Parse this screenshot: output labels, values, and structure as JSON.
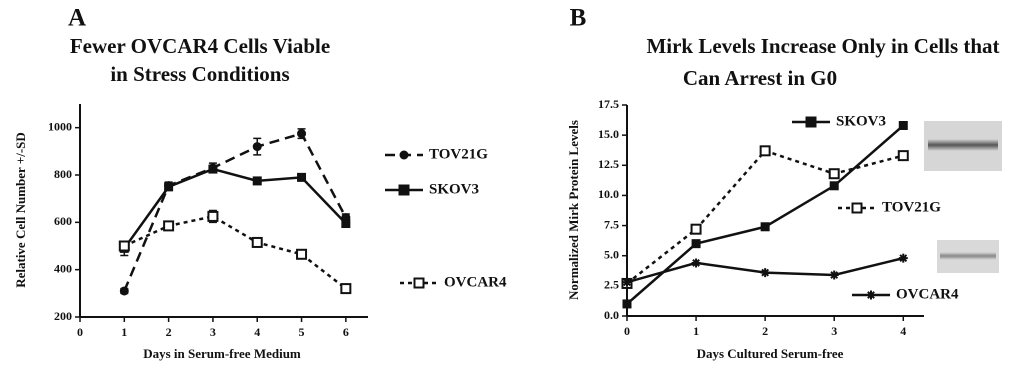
{
  "chart_data": [
    {
      "type": "line",
      "panel": "A",
      "title": [
        "Fewer OVCAR4 Cells Viable",
        "in Stress Conditions"
      ],
      "x_label": "Days in Serum-free Medium",
      "y_label": "Relative Cell Number +/-SD",
      "xlim": [
        0,
        6.5
      ],
      "xticks": [
        0,
        1,
        2,
        3,
        4,
        5,
        6
      ],
      "ylim": [
        200,
        1100
      ],
      "yticks": [
        200,
        400,
        600,
        800,
        1000
      ],
      "series": [
        {
          "name": "TOV21G",
          "color": "#111111",
          "marker": "circle",
          "line_style": "dashed",
          "x": [
            1,
            2,
            3,
            4,
            5,
            6
          ],
          "values": [
            310,
            755,
            830,
            920,
            975,
            620
          ],
          "errors": [
            10,
            15,
            20,
            35,
            20,
            15
          ]
        },
        {
          "name": "SKOV3",
          "color": "#111111",
          "marker": "square",
          "line_style": "solid",
          "x": [
            1,
            2,
            3,
            4,
            5,
            6
          ],
          "values": [
            490,
            750,
            825,
            775,
            790,
            595
          ],
          "errors": [
            30,
            15,
            15,
            10,
            10,
            15
          ]
        },
        {
          "name": "OVCAR4",
          "color": "#111111",
          "marker": "open-square",
          "line_style": "dotted",
          "x": [
            1,
            2,
            3,
            4,
            5,
            6
          ],
          "values": [
            500,
            585,
            625,
            515,
            465,
            320
          ],
          "errors": [
            10,
            15,
            25,
            15,
            15,
            10
          ]
        }
      ]
    },
    {
      "type": "line",
      "panel": "B",
      "title": [
        "Mirk Levels Increase Only in Cells that",
        "Can Arrest in G0"
      ],
      "x_label": "Days Cultured Serum-free",
      "y_label": "Normalized Mirk Protein Levels",
      "xlim": [
        0,
        4.3
      ],
      "xticks": [
        0,
        1,
        2,
        3,
        4
      ],
      "ylim": [
        0,
        17.5
      ],
      "yticks": [
        {
          "value": 0,
          "label": "0.0"
        },
        2.5,
        {
          "value": 5,
          "label": "5.0"
        },
        7.5,
        {
          "value": 10,
          "label": "10.0"
        },
        12.5,
        {
          "value": 15,
          "label": "15.0"
        },
        17.5
      ],
      "series": [
        {
          "name": "SKOV3",
          "color": "#111111",
          "marker": "square",
          "line_style": "solid",
          "x": [
            0,
            1,
            2,
            3,
            4
          ],
          "values": [
            1.0,
            6.0,
            7.4,
            10.8,
            15.8
          ]
        },
        {
          "name": "TOV21G",
          "color": "#111111",
          "marker": "open-square",
          "line_style": "dotted",
          "x": [
            0,
            1,
            2,
            3,
            4
          ],
          "values": [
            2.7,
            7.2,
            13.7,
            11.8,
            13.3
          ]
        },
        {
          "name": "OVCAR4",
          "color": "#111111",
          "marker": "star",
          "line_style": "solid",
          "x": [
            0,
            1,
            2,
            3,
            4
          ],
          "values": [
            2.8,
            4.4,
            3.6,
            3.4,
            4.8
          ]
        }
      ]
    }
  ]
}
